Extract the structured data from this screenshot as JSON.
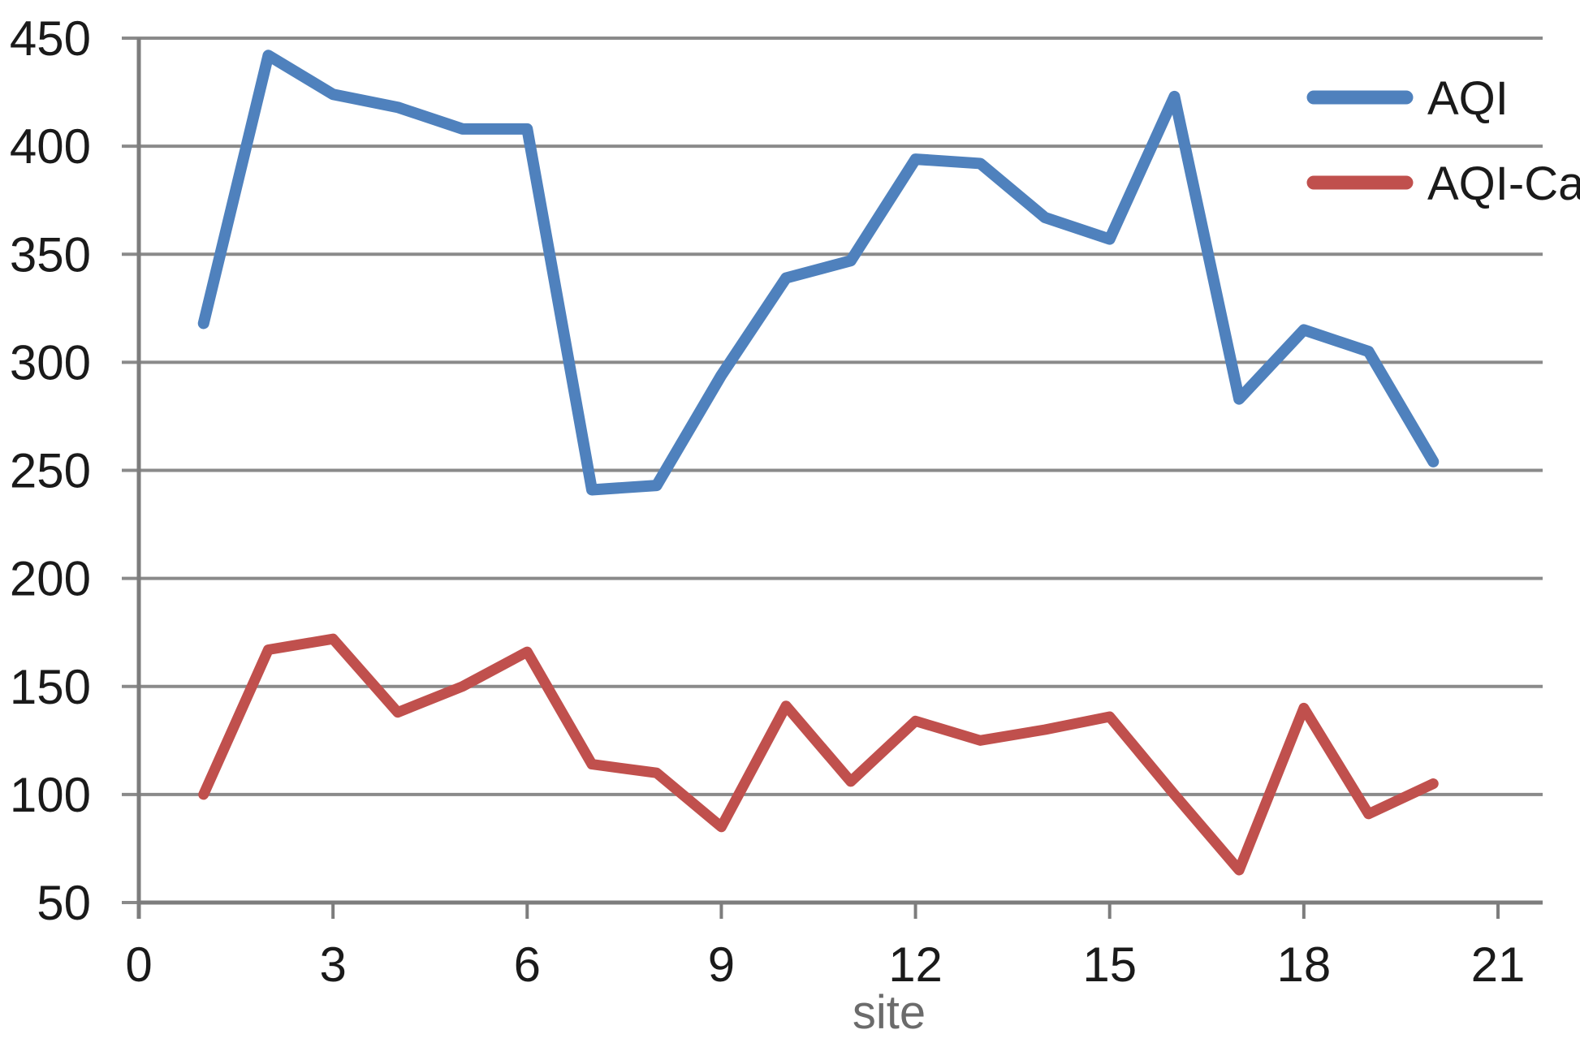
{
  "chart_data": {
    "type": "line",
    "title": "",
    "xlabel": "site",
    "ylabel": "",
    "xlim": [
      0,
      21
    ],
    "ylim": [
      50,
      450
    ],
    "xticks": [
      0,
      3,
      6,
      9,
      12,
      15,
      18,
      21
    ],
    "yticks": [
      50,
      100,
      150,
      200,
      250,
      300,
      350,
      400,
      450
    ],
    "grid": "horizontal-only",
    "legend_position": "top-right",
    "x": [
      1,
      2,
      3,
      4,
      5,
      6,
      7,
      8,
      9,
      10,
      11,
      12,
      13,
      14,
      15,
      16,
      17,
      18,
      19,
      20
    ],
    "series": [
      {
        "name": "AQI",
        "color": "#4F81BD",
        "values": [
          318,
          442,
          424,
          418,
          408,
          408,
          241,
          243,
          294,
          339,
          347,
          394,
          392,
          367,
          357,
          423,
          283,
          315,
          305,
          254
        ]
      },
      {
        "name": "AQI-Ca",
        "color": "#C0504D",
        "values": [
          100,
          167,
          172,
          138,
          150,
          166,
          114,
          110,
          85,
          141,
          106,
          134,
          125,
          130,
          136,
          100,
          65,
          140,
          91,
          105
        ]
      }
    ]
  },
  "colors": {
    "gridline": "#8a8a8a",
    "axis": "#7d7d7d",
    "tick_label": "#1a1a1a",
    "axis_title_color": "#6b6b6b",
    "background": "#ffffff"
  }
}
